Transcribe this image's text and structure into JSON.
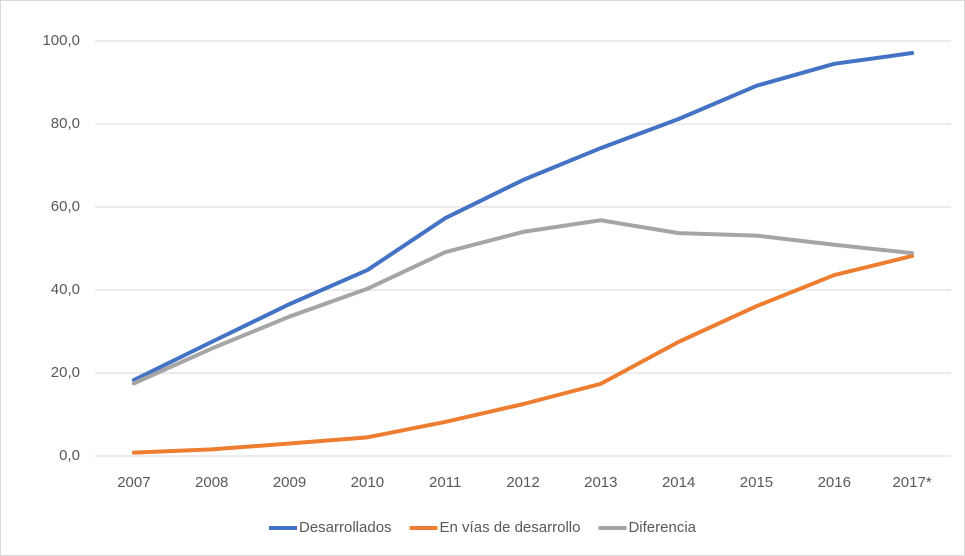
{
  "chart_data": {
    "type": "line",
    "categories": [
      "2007",
      "2008",
      "2009",
      "2010",
      "2011",
      "2012",
      "2013",
      "2014",
      "2015",
      "2016",
      "2017*"
    ],
    "series": [
      {
        "name": "Desarrollados",
        "color": "#4472c4",
        "values": [
          18.3,
          27.5,
          36.6,
          44.8,
          57.3,
          66.5,
          74.2,
          81.2,
          89.2,
          94.5,
          97.1
        ]
      },
      {
        "name": "En vías de desarrollo",
        "color": "#ed7d31",
        "values": [
          0.8,
          1.6,
          3.0,
          4.5,
          8.2,
          12.5,
          17.4,
          27.5,
          36.1,
          43.6,
          48.2
        ]
      },
      {
        "name": "Diferencia",
        "color": "#a5a5a5",
        "values": [
          17.5,
          25.9,
          33.6,
          40.3,
          49.1,
          54.0,
          56.8,
          53.7,
          53.1,
          50.9,
          48.9
        ]
      }
    ],
    "ylim": [
      0,
      100
    ],
    "yticks": [
      {
        "value": 0,
        "label": "0,0"
      },
      {
        "value": 20,
        "label": "20,0"
      },
      {
        "value": 40,
        "label": "40,0"
      },
      {
        "value": 60,
        "label": "60,0"
      },
      {
        "value": 80,
        "label": "80,0"
      },
      {
        "value": 100,
        "label": "100,0"
      }
    ],
    "grid": true,
    "legend": "bottom"
  }
}
